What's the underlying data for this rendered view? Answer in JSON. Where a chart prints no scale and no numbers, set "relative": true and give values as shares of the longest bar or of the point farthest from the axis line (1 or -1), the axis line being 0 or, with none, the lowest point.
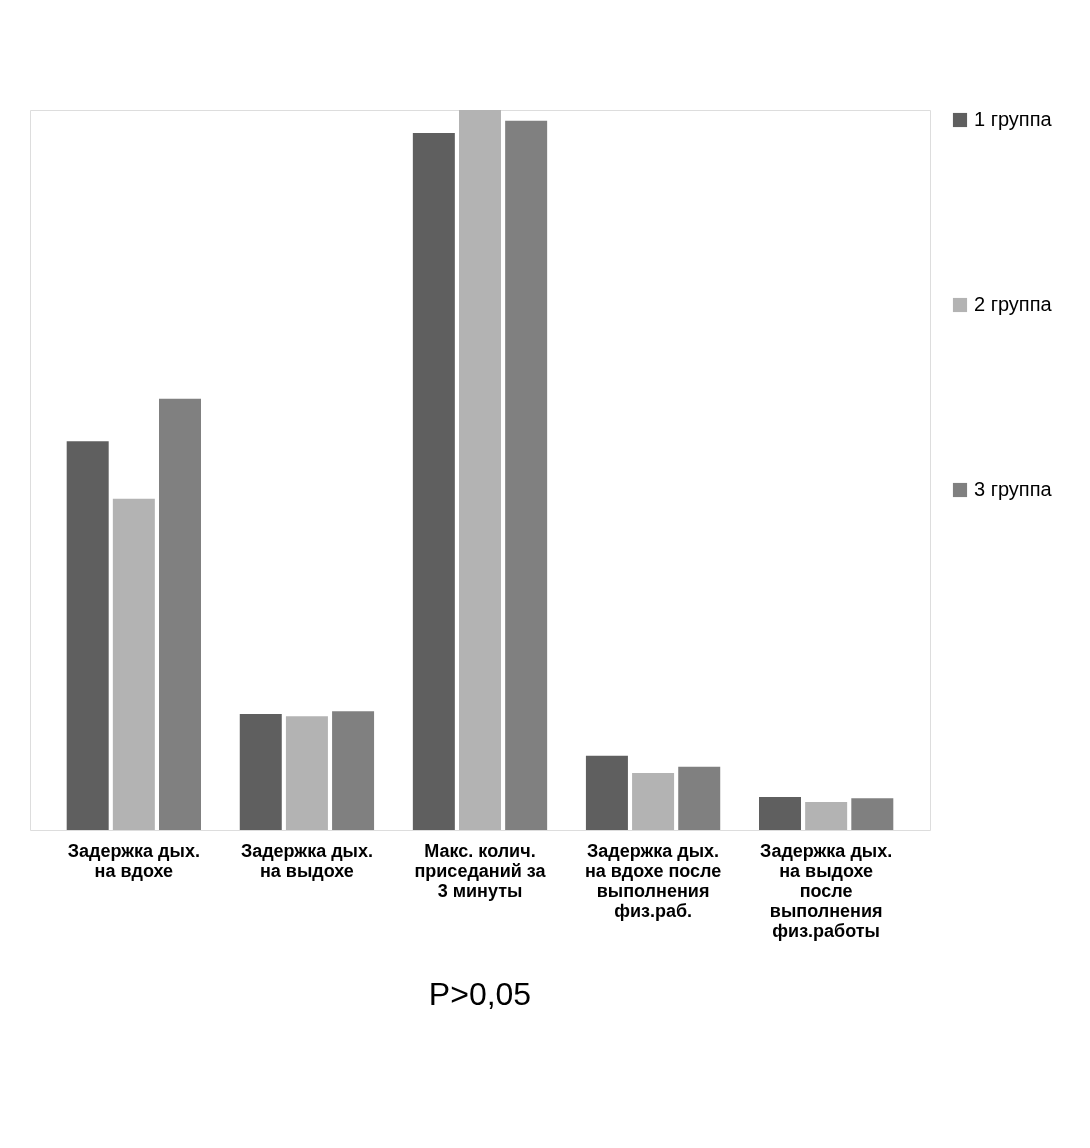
{
  "chart_data": {
    "type": "bar",
    "relative": true,
    "categories": [
      "Задержка дых. на вдохе",
      "Задержка дых. на выдохе",
      "Макс. колич. приседаний за 3 минуты",
      "Задержка дых. на вдохе после выполнения физ.раб.",
      "Задержка дых. на выдохе после выполнения физ.работы"
    ],
    "series": [
      {
        "name": "1 группа",
        "color": "#5f5f5f",
        "values": [
          0.54,
          0.161,
          0.968,
          0.103,
          0.046
        ]
      },
      {
        "name": "2 группа",
        "color": "#b3b3b3",
        "values": [
          0.46,
          0.158,
          1.0,
          0.079,
          0.039
        ]
      },
      {
        "name": "3 группа",
        "color": "#808080",
        "values": [
          0.599,
          0.165,
          0.985,
          0.088,
          0.044
        ]
      }
    ],
    "annotations": [
      "P>0,05"
    ],
    "legend": "right",
    "grid": false
  }
}
